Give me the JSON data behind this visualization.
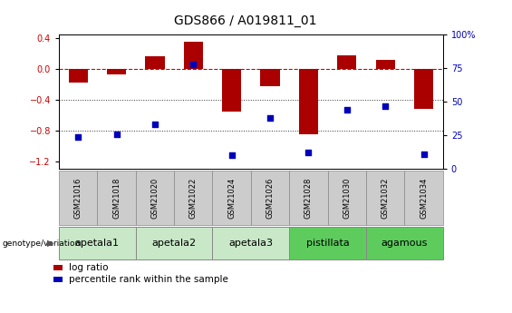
{
  "title": "GDS866 / A019811_01",
  "samples": [
    "GSM21016",
    "GSM21018",
    "GSM21020",
    "GSM21022",
    "GSM21024",
    "GSM21026",
    "GSM21028",
    "GSM21030",
    "GSM21032",
    "GSM21034"
  ],
  "log_ratio": [
    -0.18,
    -0.07,
    0.17,
    0.35,
    -0.55,
    -0.22,
    -0.85,
    0.18,
    0.12,
    -0.52
  ],
  "percentile_rank": [
    24,
    26,
    33,
    78,
    10,
    38,
    12,
    44,
    47,
    11
  ],
  "groups": [
    {
      "label": "apetala1",
      "n_samples": 2,
      "color": "#c8e8c8"
    },
    {
      "label": "apetala2",
      "n_samples": 2,
      "color": "#c8e8c8"
    },
    {
      "label": "apetala3",
      "n_samples": 2,
      "color": "#c8e8c8"
    },
    {
      "label": "pistillata",
      "n_samples": 2,
      "color": "#5dcc5d"
    },
    {
      "label": "agamous",
      "n_samples": 2,
      "color": "#5dcc5d"
    }
  ],
  "ylim_left": [
    -1.3,
    0.45
  ],
  "ylim_right": [
    0,
    100
  ],
  "yticks_left": [
    -1.2,
    -0.8,
    -0.4,
    0.0,
    0.4
  ],
  "yticks_right": [
    0,
    25,
    50,
    75,
    100
  ],
  "bar_color": "#aa0000",
  "dot_color": "#0000bb",
  "zero_line_color": "#cc0000",
  "dotted_line_color": "#333333",
  "bar_width": 0.5,
  "dot_size": 25,
  "title_fontsize": 10,
  "axis_tick_fontsize": 7,
  "label_fontsize": 7.5,
  "legend_fontsize": 7.5,
  "sample_label_fontsize": 6,
  "group_label_fontsize": 8
}
